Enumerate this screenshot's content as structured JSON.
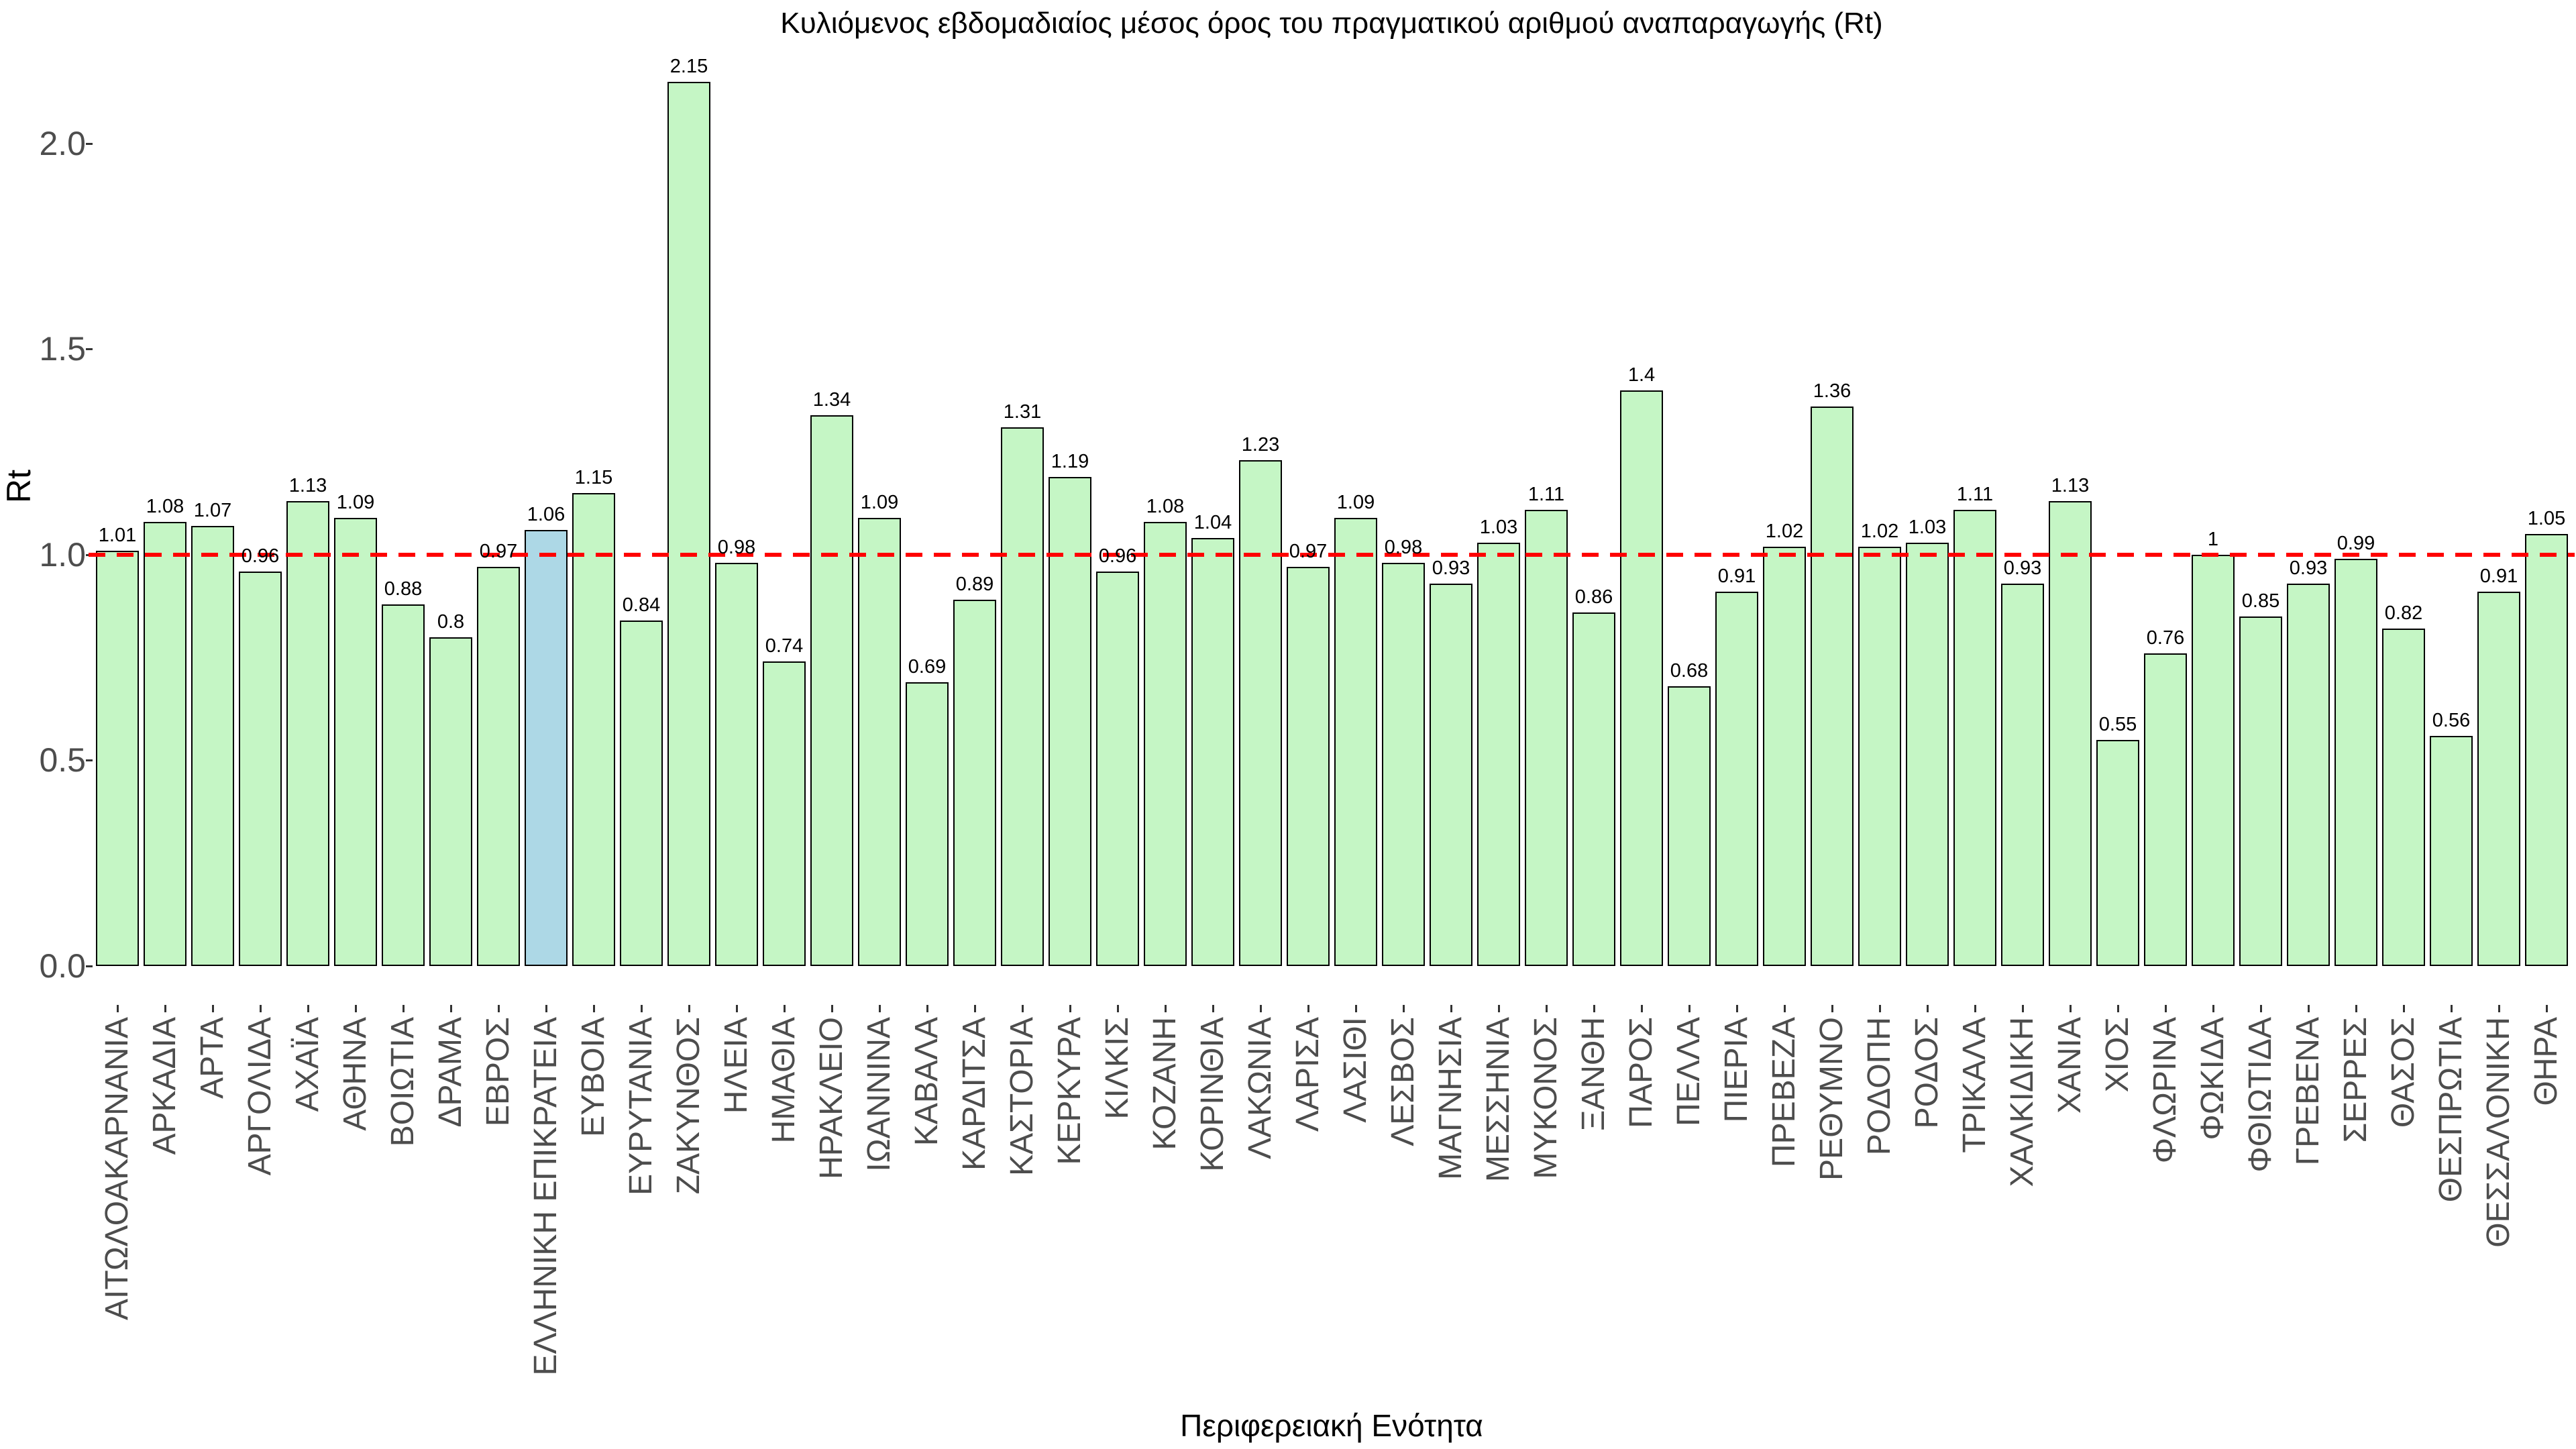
{
  "chart_data": {
    "type": "bar",
    "title": "Κυλιόμενος εβδομαδιαίος μέσος όρος του πραγματικού αριθμού αναπαραγωγής (Rt)",
    "xlabel": "Περιφερειακή Ενότητα",
    "ylabel": "Rt",
    "ylim": [
      0.0,
      2.2
    ],
    "grid": false,
    "legend_position": "none",
    "ytick_labels": [
      "0.0",
      "0.5",
      "1.0",
      "1.5",
      "2.0"
    ],
    "ytick_values": [
      0.0,
      0.5,
      1.0,
      1.5,
      2.0
    ],
    "reference_line": {
      "value": 1.0,
      "style": "dashed",
      "color": "#ff0000"
    },
    "highlight_category": "ΕΛΛΗΝΙΚΗ ΕΠΙΚΡΑΤΕΙΑ",
    "highlight_index": 9,
    "categories": [
      "ΑΙΤΩΛΟΑΚΑΡΝΑΝΙΑ",
      "ΑΡΚΑΔΙΑ",
      "ΑΡΤΑ",
      "ΑΡΓΟΛΙΔΑ",
      "ΑΧΑΪΑ",
      "ΑΘΗΝΑ",
      "ΒΟΙΩΤΙΑ",
      "ΔΡΑΜΑ",
      "ΕΒΡΟΣ",
      "ΕΛΛΗΝΙΚΗ ΕΠΙΚΡΑΤΕΙΑ",
      "ΕΥΒΟΙΑ",
      "ΕΥΡΥΤΑΝΙΑ",
      "ΖΑΚΥΝΘΟΣ",
      "ΗΛΕΙΑ",
      "ΗΜΑΘΙΑ",
      "ΗΡΑΚΛΕΙΟ",
      "ΙΩΑΝΝΙΝΑ",
      "ΚΑΒΑΛΑ",
      "ΚΑΡΔΙΤΣΑ",
      "ΚΑΣΤΟΡΙΑ",
      "ΚΕΡΚΥΡΑ",
      "ΚΙΛΚΙΣ",
      "ΚΟΖΑΝΗ",
      "ΚΟΡΙΝΘΙΑ",
      "ΛΑΚΩΝΙΑ",
      "ΛΑΡΙΣΑ",
      "ΛΑΣΙΘΙ",
      "ΛΕΣΒΟΣ",
      "ΜΑΓΝΗΣΙΑ",
      "ΜΕΣΣΗΝΙΑ",
      "ΜΥΚΟΝΟΣ",
      "ΞΑΝΘΗ",
      "ΠΑΡΟΣ",
      "ΠΕΛΛΑ",
      "ΠΙΕΡΙΑ",
      "ΠΡΕΒΕΖΑ",
      "ΡΕΘΥΜΝΟ",
      "ΡΟΔΟΠΗ",
      "ΡΟΔΟΣ",
      "ΤΡΙΚΑΛΑ",
      "ΧΑΛΚΙΔΙΚΗ",
      "ΧΑΝΙΑ",
      "ΧΙΟΣ",
      "ΦΛΩΡΙΝΑ",
      "ΦΩΚΙΔΑ",
      "ΦΘΙΩΤΙΔΑ",
      "ΓΡΕΒΕΝΑ",
      "ΣΕΡΡΕΣ",
      "ΘΑΣΟΣ",
      "ΘΕΣΠΡΩΤΙΑ",
      "ΘΕΣΣΑΛΟΝΙΚΗ",
      "ΘΗΡΑ"
    ],
    "values": [
      1.01,
      1.08,
      1.07,
      0.96,
      1.13,
      1.09,
      0.88,
      0.8,
      0.97,
      1.06,
      1.15,
      0.84,
      2.15,
      0.98,
      0.74,
      1.34,
      1.09,
      0.69,
      0.89,
      1.31,
      1.19,
      0.96,
      1.08,
      1.04,
      1.23,
      0.97,
      1.09,
      0.98,
      0.93,
      1.03,
      1.11,
      0.86,
      1.4,
      0.68,
      0.91,
      1.02,
      1.36,
      1.02,
      1.03,
      1.11,
      0.93,
      1.13,
      0.55,
      0.76,
      1,
      0.85,
      0.93,
      0.99,
      0.82,
      0.56,
      0.91,
      1.05
    ],
    "colors": {
      "bar_fill": "#c5f6c5",
      "bar_border": "#000000",
      "highlight_fill": "#add8e6",
      "reference_line": "#ff0000",
      "axis_tick_text": "#4d4d4d",
      "value_label_text": "#000000",
      "background": "#ffffff"
    }
  }
}
